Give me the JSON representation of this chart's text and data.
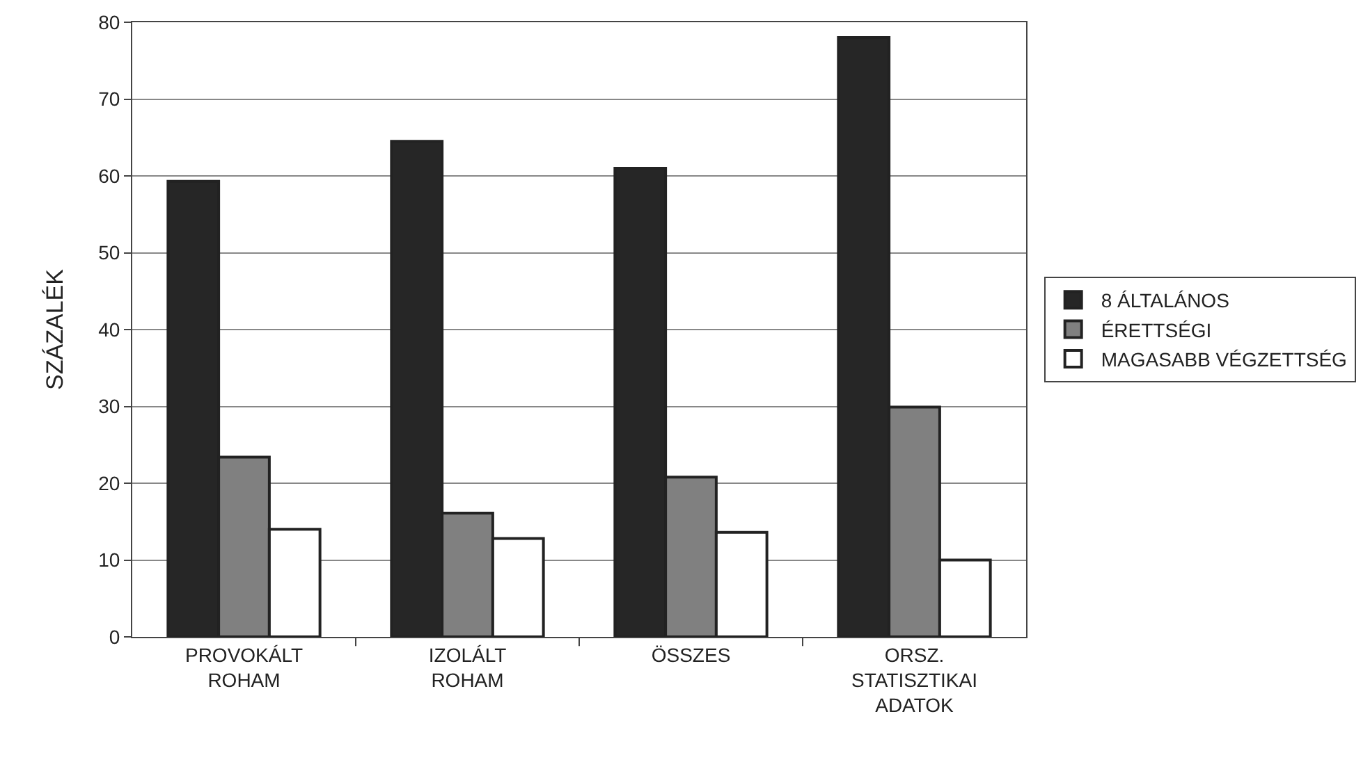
{
  "chart_data": {
    "type": "bar",
    "ylabel": "SZÁZALÉK",
    "categories": [
      "PROVOKÁLT ROHAM",
      "IZOLÁLT ROHAM",
      "ÖSSZES",
      "ORSZ. STATISZTIKAI ADATOK"
    ],
    "series": [
      {
        "name": "8 ÁLTALÁNOS",
        "color": "#262626",
        "values": [
          59.3,
          64.5,
          61.0,
          78.0
        ]
      },
      {
        "name": "ÉRETTSÉGI",
        "color": "#808080",
        "values": [
          23.4,
          16.1,
          20.8,
          29.9
        ]
      },
      {
        "name": "MAGASABB VÉGZETTSÉG",
        "color": "#ffffff",
        "values": [
          14.0,
          12.8,
          13.6,
          10.0
        ]
      }
    ],
    "ylim": [
      0,
      80
    ],
    "yticks": [
      0,
      10,
      20,
      30,
      40,
      50,
      60,
      70,
      80
    ],
    "grid": "y",
    "legend": "right"
  }
}
